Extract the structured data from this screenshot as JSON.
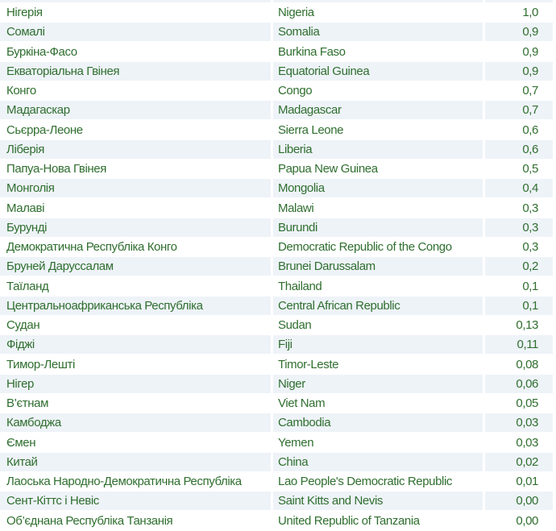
{
  "table": {
    "rows": [
      [
        "Нігерія",
        "Nigeria",
        "1,0"
      ],
      [
        "Сомалі",
        "Somalia",
        "0,9"
      ],
      [
        "Буркіна-Фасо",
        "Burkina Faso",
        "0,9"
      ],
      [
        "Екваторіальна Гвінея",
        "Equatorial Guinea",
        "0,9"
      ],
      [
        "Конго",
        "Congo",
        "0,7"
      ],
      [
        "Мадагаскар",
        "Madagascar",
        "0,7"
      ],
      [
        "Сьєрра-Леоне",
        "Sierra Leone",
        "0,6"
      ],
      [
        "Ліберія",
        "Liberia",
        "0,6"
      ],
      [
        "Папуа-Нова Гвінея",
        "Papua New Guinea",
        "0,5"
      ],
      [
        "Монголія",
        "Mongolia",
        "0,4"
      ],
      [
        "Малаві",
        "Malawi",
        "0,3"
      ],
      [
        "Бурунді",
        "Burundi",
        "0,3"
      ],
      [
        "Демократична Республіка Конго",
        "Democratic Republic of the Congo",
        "0,3"
      ],
      [
        "Бруней Даруссалам",
        "Brunei Darussalam",
        "0,2"
      ],
      [
        "Таїланд",
        "Thailand",
        "0,1"
      ],
      [
        "Центральноафриканська Республіка",
        "Central African Republic",
        "0,1"
      ],
      [
        "Судан",
        "Sudan",
        "0,13"
      ],
      [
        "Фіджі",
        "Fiji",
        "0,11"
      ],
      [
        "Тимор-Лешті",
        "Timor-Leste",
        "0,08"
      ],
      [
        "Нігер",
        "Niger",
        "0,06"
      ],
      [
        "В’єтнам",
        "Viet Nam",
        "0,05"
      ],
      [
        "Камбоджа",
        "Cambodia",
        "0,03"
      ],
      [
        "Ємен",
        "Yemen",
        "0,03"
      ],
      [
        "Китай",
        "China",
        "0,02"
      ],
      [
        "Лаоська Народно-Демократична Республіка",
        "Lao People's Democratic Republic",
        "0,01"
      ],
      [
        "Сент-Кіттс і Невіс",
        "Saint Kitts and Nevis",
        "0,00"
      ],
      [
        "Об’єднана Республіка Танзанія",
        "United Republic of Tanzania",
        "0,00"
      ]
    ]
  }
}
